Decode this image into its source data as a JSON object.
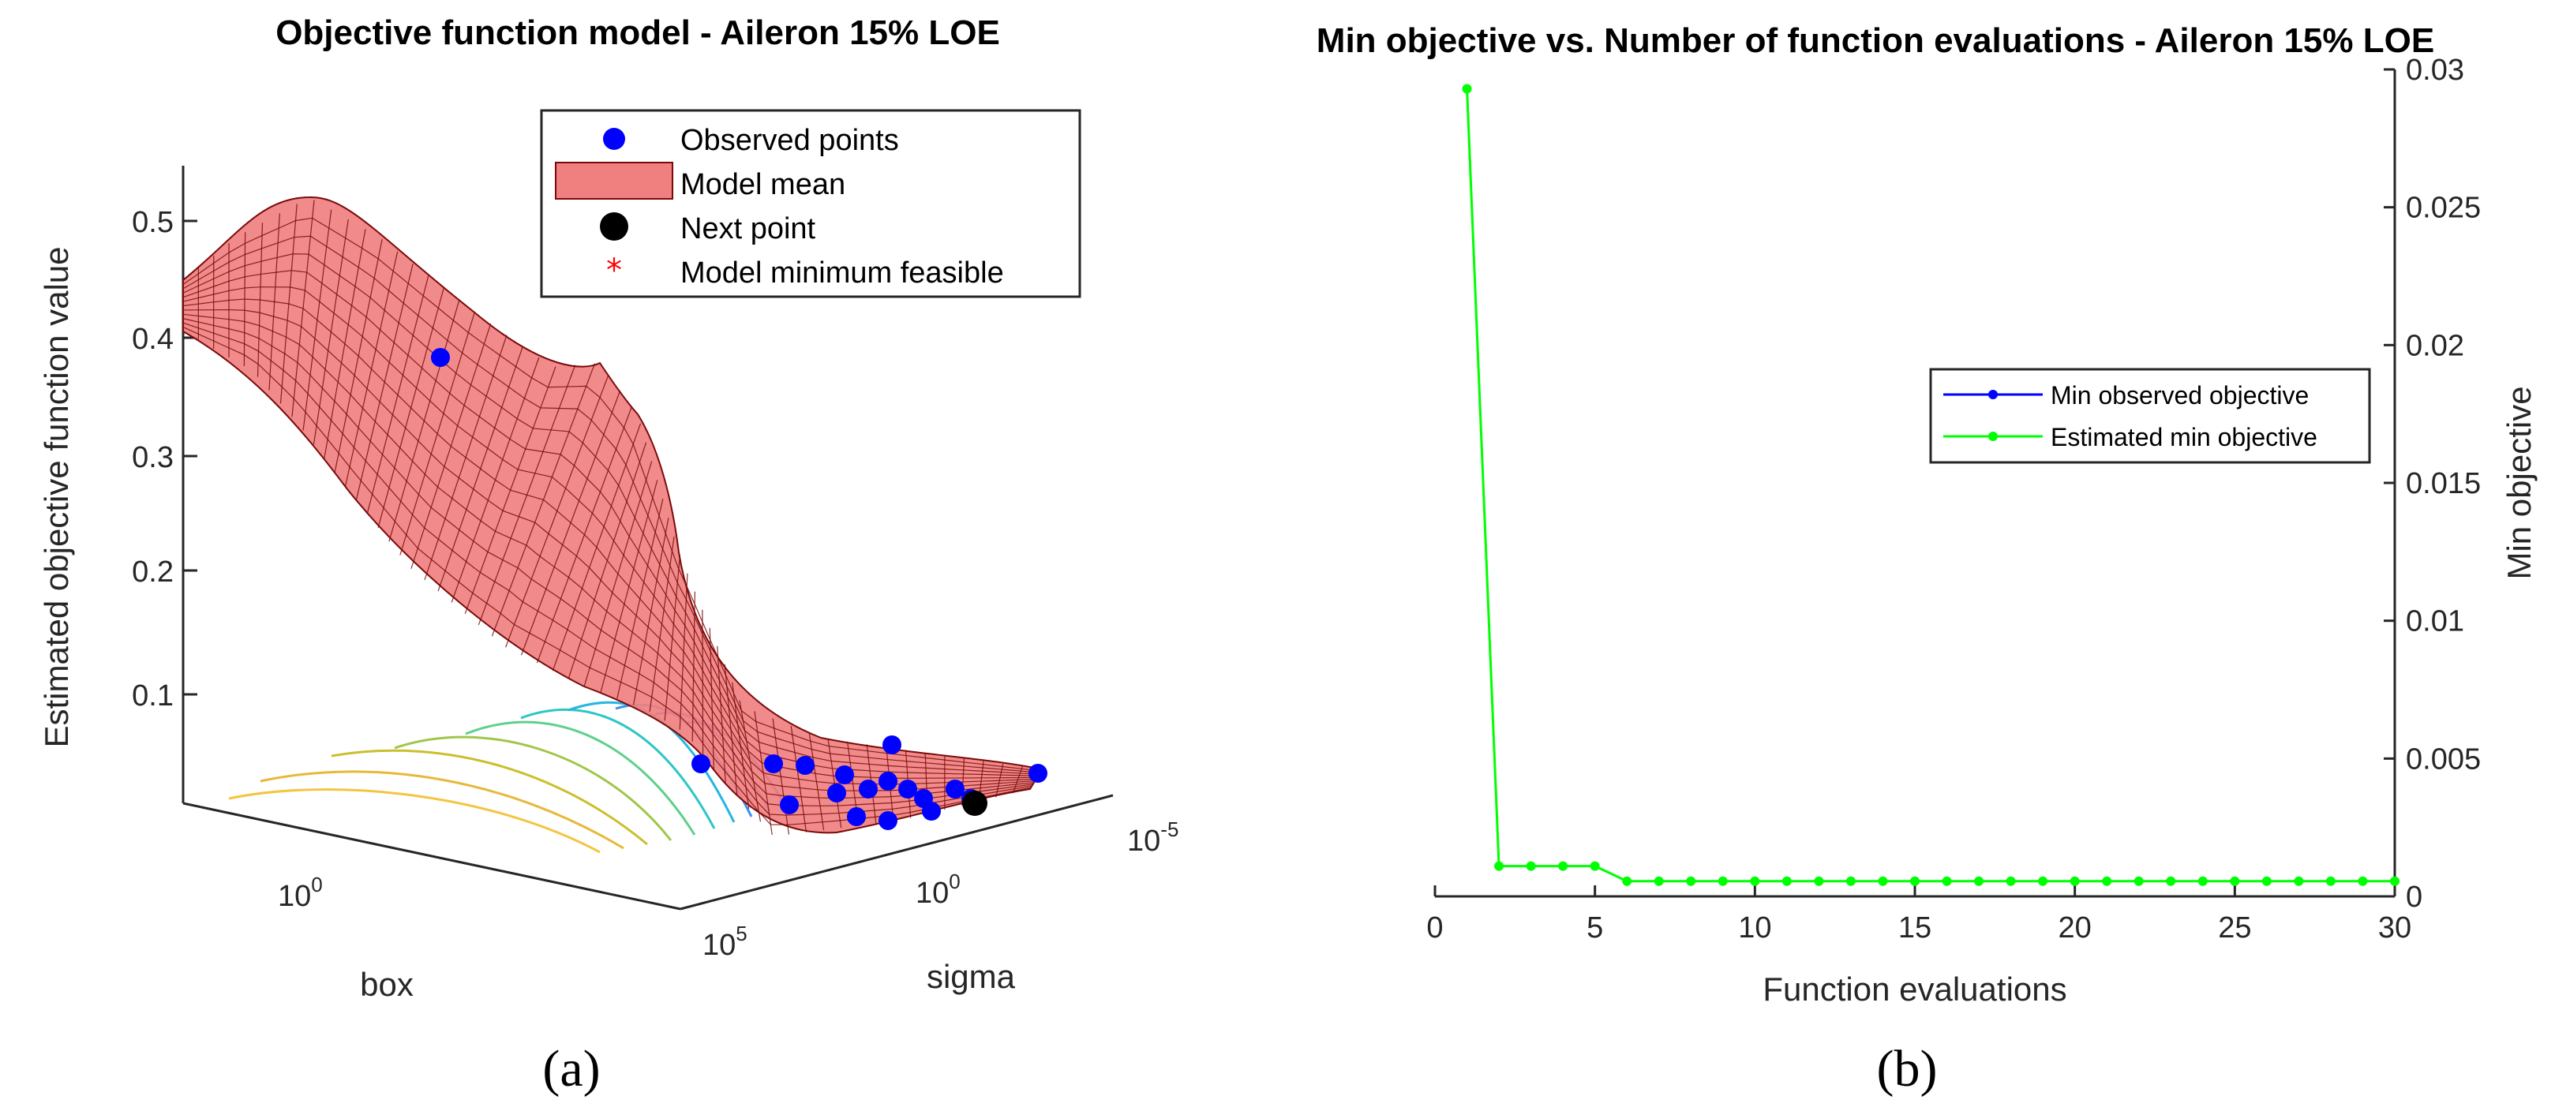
{
  "panels": {
    "a": {
      "label": "(a)",
      "title": "Objective function model - Aileron 15% LOE",
      "zlabel": "Estimated objective function value",
      "z_ticks": [
        "0.1",
        "0.2",
        "0.3",
        "0.4",
        "0.5"
      ],
      "box_label": "box",
      "box_tick": {
        "base": "10",
        "exp": "0"
      },
      "sigma_label": "sigma",
      "sigma_ticks": [
        {
          "base": "10",
          "exp": "5"
        },
        {
          "base": "10",
          "exp": "0"
        },
        {
          "base": "10",
          "exp": "-5"
        }
      ],
      "legend": [
        "Observed points",
        "Model mean",
        "Next point",
        "Model minimum feasible"
      ],
      "colors": {
        "surface": "#f08080",
        "mesh": "#7a0a0a",
        "observed": "#0000ff",
        "next": "#000000",
        "model_min": "#ff0000"
      }
    },
    "b": {
      "label": "(b)",
      "title": "Min objective vs. Number of function evaluations - Aileron 15% LOE",
      "legend": [
        "Min observed objective",
        "Estimated min objective"
      ],
      "colors": {
        "observed": "#0000ff",
        "estimated": "#00ff00"
      }
    }
  },
  "chart_data": [
    {
      "type": "surface",
      "title": "Objective function model - Aileron 15% LOE",
      "zlabel": "Estimated objective function value",
      "xlabel": "box",
      "ylabel": "sigma",
      "zlim": [
        0,
        0.55
      ],
      "z_ticks": [
        0.1,
        0.2,
        0.3,
        0.4,
        0.5
      ],
      "x_scale": "log",
      "y_scale": "log",
      "series": [
        {
          "name": "Observed points",
          "marker": "circle",
          "color": "#0000ff"
        },
        {
          "name": "Model mean",
          "marker": "surface",
          "color": "#f08080"
        },
        {
          "name": "Next point",
          "marker": "circle",
          "color": "#000000"
        },
        {
          "name": "Model minimum feasible",
          "marker": "asterisk",
          "color": "#ff0000"
        }
      ],
      "legend_position": "top-right"
    },
    {
      "type": "line",
      "title": "Min objective vs. Number of function evaluations - Aileron 15% LOE",
      "xlabel": "Function evaluations",
      "ylabel": "Min objective",
      "xlim": [
        0,
        30
      ],
      "ylim": [
        0,
        0.03
      ],
      "x_ticks": [
        0,
        5,
        10,
        15,
        20,
        25,
        30
      ],
      "y_ticks": [
        0,
        0.005,
        0.01,
        0.015,
        0.02,
        0.025,
        0.03
      ],
      "y_axis_side": "right",
      "legend_position": "center-right",
      "series": [
        {
          "name": "Min observed objective",
          "color": "#0000ff",
          "x": [],
          "values": []
        },
        {
          "name": "Estimated min objective",
          "color": "#00ff00",
          "x": [
            1,
            2,
            3,
            4,
            5,
            6,
            7,
            8,
            9,
            10,
            11,
            12,
            13,
            14,
            15,
            16,
            17,
            18,
            19,
            20,
            21,
            22,
            23,
            24,
            25,
            26,
            27,
            28,
            29,
            30
          ],
          "values": [
            0.0293,
            0.0011,
            0.0011,
            0.0011,
            0.0011,
            0.00055,
            0.00055,
            0.00055,
            0.00055,
            0.00055,
            0.00055,
            0.00055,
            0.00055,
            0.00055,
            0.00055,
            0.00055,
            0.00055,
            0.00055,
            0.00055,
            0.00055,
            0.00055,
            0.00055,
            0.00055,
            0.00055,
            0.00055,
            0.00055,
            0.00055,
            0.00055,
            0.00055,
            0.00055
          ]
        }
      ]
    }
  ]
}
